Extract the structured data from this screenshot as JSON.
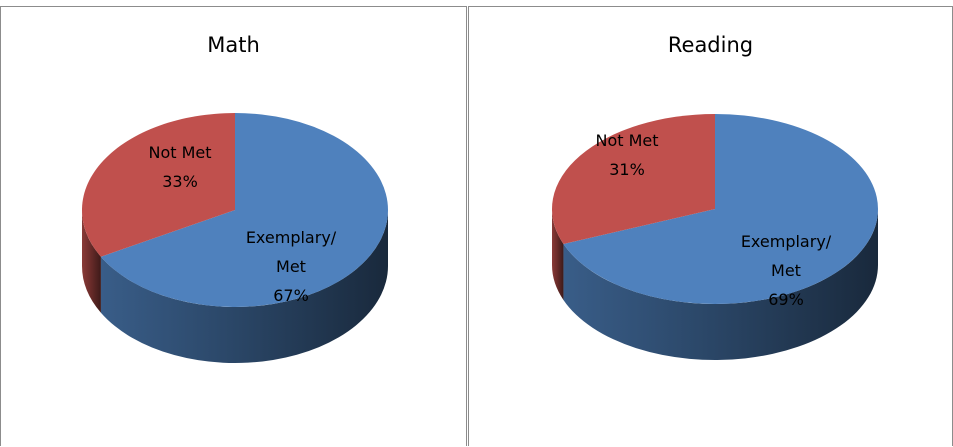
{
  "chart_data": [
    {
      "type": "pie",
      "title": "Math",
      "slices": [
        {
          "label": "Exemplary/ Met",
          "label_lines": [
            "Exemplary/",
            "Met"
          ],
          "value": 67,
          "value_label": "67%",
          "color": "#4F81BD"
        },
        {
          "label": "Not Met",
          "label_lines": [
            "Not Met"
          ],
          "value": 33,
          "value_label": "33%",
          "color": "#C0504D"
        }
      ],
      "legend": "none",
      "style": "3d"
    },
    {
      "type": "pie",
      "title": "Reading",
      "slices": [
        {
          "label": "Exemplary/ Met",
          "label_lines": [
            "Exemplary/",
            "Met"
          ],
          "value": 69,
          "value_label": "69%",
          "color": "#4F81BD"
        },
        {
          "label": "Not Met",
          "label_lines": [
            "Not Met"
          ],
          "value": 31,
          "value_label": "31%",
          "color": "#C0504D"
        }
      ],
      "legend": "none",
      "style": "3d"
    }
  ]
}
